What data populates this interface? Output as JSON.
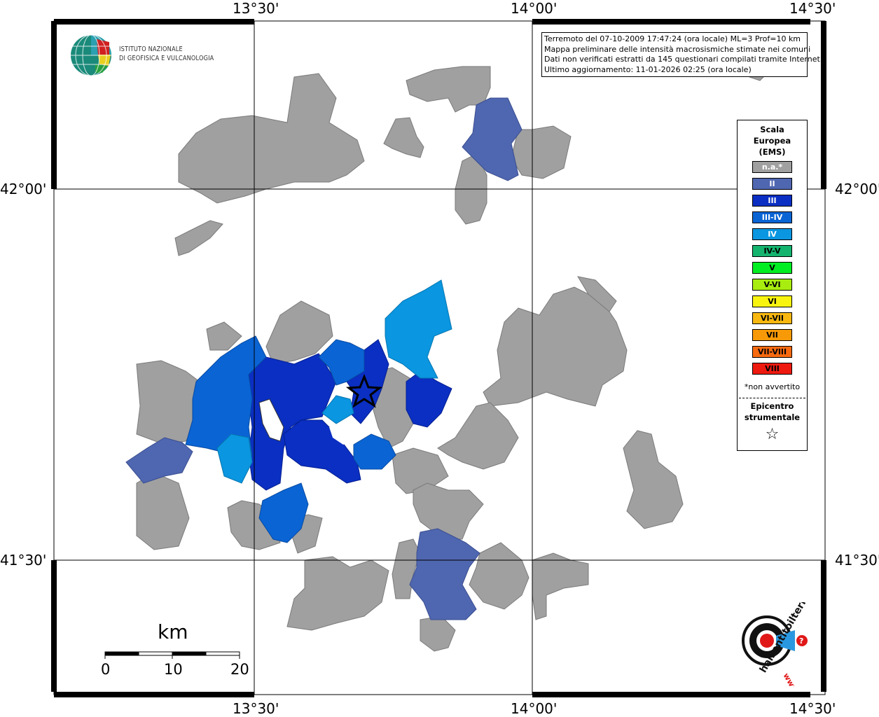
{
  "map": {
    "top_labels": [
      "13°30'",
      "14°00'",
      "14°30'"
    ],
    "bottom_labels": [
      "13°30'",
      "14°00'",
      "14°30'"
    ],
    "left_labels": [
      "42°00'",
      "41°30'"
    ],
    "right_labels": [
      "42°00'",
      "41°30'"
    ],
    "epicenter_symbol": "star-icon"
  },
  "info": {
    "line1": "Terremoto del 07-10-2009 17:47:24 (ora locale) ML=3 Prof=10 km",
    "line2": "Mappa preliminare delle intensità macrosismiche stimate nei comuni",
    "line3": "Dati non verificati estratti da 145 questionari compilati tramite Internet.",
    "line4": "Ultimo aggiornamento: 11-01-2026 02:25 (ora locale)"
  },
  "logo": {
    "line1": "ISTITUTO NAZIONALE",
    "line2": "DI GEOFISICA E VULCANOLOGIA"
  },
  "legend": {
    "title1": "Scala",
    "title2": "Europea",
    "title3": "(EMS)",
    "items": [
      {
        "label": "n.a.*",
        "color": "#a0a0a0",
        "text_color": "#ffffff"
      },
      {
        "label": "II",
        "color": "#4f66b0",
        "text_color": "#ffffff"
      },
      {
        "label": "III",
        "color": "#0a2fc2",
        "text_color": "#ffffff"
      },
      {
        "label": "III-IV",
        "color": "#0a64d4",
        "text_color": "#ffffff"
      },
      {
        "label": "IV",
        "color": "#0a96e0",
        "text_color": "#ffffff"
      },
      {
        "label": "IV-V",
        "color": "#14b46e",
        "text_color": "#000000"
      },
      {
        "label": "V",
        "color": "#00ee22",
        "text_color": "#000000"
      },
      {
        "label": "V-VI",
        "color": "#a8ec10",
        "text_color": "#000000"
      },
      {
        "label": "VI",
        "color": "#f8f410",
        "text_color": "#000000"
      },
      {
        "label": "VI-VII",
        "color": "#f8b810",
        "text_color": "#000000"
      },
      {
        "label": "VII",
        "color": "#f89a08",
        "text_color": "#000000"
      },
      {
        "label": "VII-VIII",
        "color": "#f86a10",
        "text_color": "#000000"
      },
      {
        "label": "VIII",
        "color": "#ee1a10",
        "text_color": "#000000"
      }
    ],
    "note": "*non avvertito",
    "epicenter1": "Epicentro",
    "epicenter2": "strumentale",
    "star": "☆"
  },
  "scalebar": {
    "title": "km",
    "labels": [
      "0",
      "10",
      "20"
    ]
  },
  "brand": {
    "text": "haisentitoilterremoto.it",
    "www": "www."
  }
}
